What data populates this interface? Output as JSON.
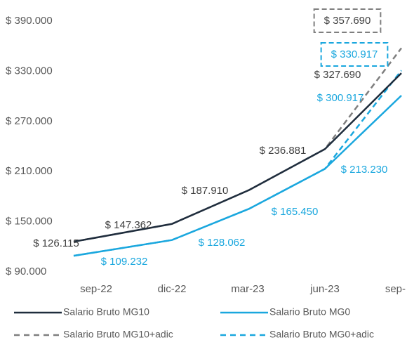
{
  "chart_data": {
    "type": "line",
    "categories": [
      "sep-22",
      "dic-22",
      "mar-23",
      "jun-23",
      "sep-"
    ],
    "ylim": [
      90000,
      390000
    ],
    "yticks": [
      {
        "value": 90000,
        "label": "$ 90.000"
      },
      {
        "value": 150000,
        "label": "$ 150.000"
      },
      {
        "value": 210000,
        "label": "$ 210.000"
      },
      {
        "value": 270000,
        "label": "$ 270.000"
      },
      {
        "value": 330000,
        "label": "$ 330.000"
      },
      {
        "value": 390000,
        "label": "$ 390.000"
      }
    ],
    "grid": false,
    "legend": "bottom",
    "series": [
      {
        "name": "Salario Bruto MG10",
        "color": "#1f2d3d",
        "dash": false,
        "values": [
          126115,
          147362,
          187910,
          236881,
          327690
        ],
        "value_labels": [
          "$ 126.115",
          "$ 147.362",
          "$ 187.910",
          "$ 236.881",
          "$ 327.690"
        ]
      },
      {
        "name": "Salario Bruto MG0",
        "color": "#1aa7de",
        "dash": false,
        "values": [
          109232,
          128062,
          165450,
          213230,
          300917
        ],
        "value_labels": [
          "$ 109.232",
          "$ 128.062",
          "$ 165.450",
          "$ 213.230",
          "$ 300.917"
        ]
      },
      {
        "name": "Salario Bruto MG10+adic",
        "color": "#7f7f7f",
        "dash": true,
        "values": [
          126115,
          147362,
          187910,
          236881,
          357690
        ],
        "value_labels": [
          null,
          null,
          null,
          null,
          "$ 357.690"
        ]
      },
      {
        "name": "Salario Bruto MG0+adic",
        "color": "#1aa7de",
        "dash": true,
        "values": [
          109232,
          128062,
          165450,
          213230,
          330917
        ],
        "value_labels": [
          null,
          null,
          null,
          null,
          "$ 330.917"
        ]
      }
    ]
  }
}
